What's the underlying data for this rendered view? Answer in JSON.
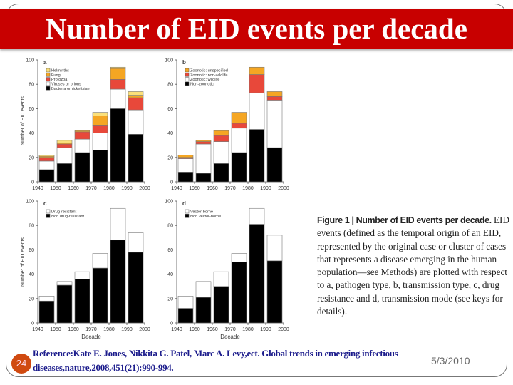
{
  "title": "Number of EID events per decade",
  "caption": {
    "bold": "Figure 1 | Number of EID events per decade.",
    "text": "EID events (defined as the temporal origin of an EID, represented by the original case or cluster of cases that represents a disease emerging in the human population—see Methods) are plotted with respect to a, pathogen type, b, transmission type, c, drug resistance and d, transmission mode (see keys for details)."
  },
  "footer": {
    "slide_number": "24",
    "reference_line1": "Reference:Kate E. Jones, Nikkita G. Patel, Marc A. Levy,ect. Global trends in emerging infectious",
    "reference_line2": "diseases,nature,2008,451(21):990-994.",
    "date": "5/3/2010"
  },
  "chart_data": [
    {
      "type": "bar",
      "stacked": true,
      "panel": "a",
      "ylabel": "Number of EID events",
      "xlabel": "",
      "ylim": [
        0,
        100
      ],
      "x_ticks": [
        "1940",
        "1950",
        "1960",
        "1970",
        "1980",
        "1990",
        "2000"
      ],
      "y_ticks": [
        "0",
        "20",
        "40",
        "60",
        "80",
        "100"
      ],
      "categories": [
        "1940s",
        "1950s",
        "1960s",
        "1970s",
        "1980s",
        "1990s"
      ],
      "series": [
        {
          "name": "Bacteria or rickettsiae",
          "color": "#000000",
          "values": [
            10,
            15,
            24,
            26,
            60,
            39
          ]
        },
        {
          "name": "Viruses or prions",
          "color": "#ffffff",
          "values": [
            7,
            13,
            11,
            14,
            16,
            20
          ]
        },
        {
          "name": "Protozoa",
          "color": "#e8483a",
          "values": [
            3,
            3,
            6,
            6,
            8,
            10
          ]
        },
        {
          "name": "Fungi",
          "color": "#f5a623",
          "values": [
            1,
            1,
            1,
            8,
            9,
            2
          ]
        },
        {
          "name": "Helminths",
          "color": "#fbe07a",
          "values": [
            1,
            2,
            0,
            3,
            1,
            3
          ]
        }
      ]
    },
    {
      "type": "bar",
      "stacked": true,
      "panel": "b",
      "ylabel": "",
      "xlabel": "",
      "ylim": [
        0,
        100
      ],
      "x_ticks": [
        "1940",
        "1950",
        "1960",
        "1970",
        "1980",
        "1990",
        "2000"
      ],
      "y_ticks": [
        "0",
        "20",
        "40",
        "60",
        "80",
        "100"
      ],
      "categories": [
        "1940s",
        "1950s",
        "1960s",
        "1970s",
        "1980s",
        "1990s"
      ],
      "series": [
        {
          "name": "Non-zoonotic",
          "color": "#000000",
          "values": [
            8,
            7,
            15,
            24,
            43,
            28
          ]
        },
        {
          "name": "Zoonotic: wildlife",
          "color": "#ffffff",
          "values": [
            11,
            24,
            18,
            20,
            30,
            39
          ]
        },
        {
          "name": "Zoonotic: non-wildlife",
          "color": "#e8483a",
          "values": [
            1,
            2,
            5,
            4,
            15,
            3
          ]
        },
        {
          "name": "Zoonotic: unspecified",
          "color": "#f5a623",
          "values": [
            2,
            1,
            4,
            9,
            6,
            4
          ]
        }
      ]
    },
    {
      "type": "bar",
      "stacked": true,
      "panel": "c",
      "ylabel": "Number of EID events",
      "xlabel": "Decade",
      "ylim": [
        0,
        100
      ],
      "x_ticks": [
        "1940",
        "1950",
        "1960",
        "1970",
        "1980",
        "1990",
        "2000"
      ],
      "y_ticks": [
        "0",
        "20",
        "40",
        "60",
        "80",
        "100"
      ],
      "categories": [
        "1940s",
        "1950s",
        "1960s",
        "1970s",
        "1980s",
        "1990s"
      ],
      "series": [
        {
          "name": "Non drug-resistant",
          "color": "#000000",
          "values": [
            18,
            31,
            36,
            45,
            68,
            58
          ]
        },
        {
          "name": "Drug-resistant",
          "color": "#ffffff",
          "values": [
            4,
            3,
            6,
            12,
            26,
            16
          ]
        }
      ]
    },
    {
      "type": "bar",
      "stacked": true,
      "panel": "d",
      "ylabel": "",
      "xlabel": "Decade",
      "ylim": [
        0,
        100
      ],
      "x_ticks": [
        "1940",
        "1950",
        "1960",
        "1970",
        "1980",
        "1990",
        "2000"
      ],
      "y_ticks": [
        "0",
        "20",
        "40",
        "60",
        "80",
        "100"
      ],
      "categories": [
        "1940s",
        "1950s",
        "1960s",
        "1970s",
        "1980s",
        "1990s"
      ],
      "series": [
        {
          "name": "Non vector-borne",
          "color": "#000000",
          "values": [
            12,
            21,
            30,
            50,
            81,
            51
          ]
        },
        {
          "name": "Vector-borne",
          "color": "#ffffff",
          "values": [
            10,
            13,
            12,
            7,
            13,
            21
          ]
        }
      ]
    }
  ]
}
